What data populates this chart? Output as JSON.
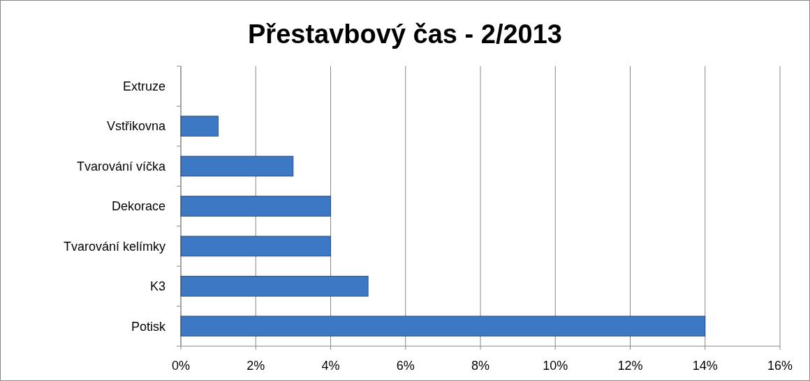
{
  "chart_data": {
    "type": "bar",
    "orientation": "horizontal",
    "title": "Přestavbový čas - 2/2013",
    "categories": [
      "Extruze",
      "Vstřikovna",
      "Tvarování víčka",
      "Dekorace",
      "Tvarování kelímky",
      "K3",
      "Potisk"
    ],
    "values": [
      0,
      1,
      3,
      4,
      4,
      5,
      14
    ],
    "color": "#3c78c3",
    "xlim": [
      0,
      16
    ],
    "xticks": [
      {
        "value": 0,
        "label": "0%"
      },
      {
        "value": 2,
        "label": "2%"
      },
      {
        "value": 4,
        "label": "4%"
      },
      {
        "value": 6,
        "label": "6%"
      },
      {
        "value": 8,
        "label": "8%"
      },
      {
        "value": 10,
        "label": "10%"
      },
      {
        "value": 12,
        "label": "12%"
      },
      {
        "value": 14,
        "label": "14%"
      },
      {
        "value": 16,
        "label": "16%"
      }
    ],
    "grid": "x"
  }
}
